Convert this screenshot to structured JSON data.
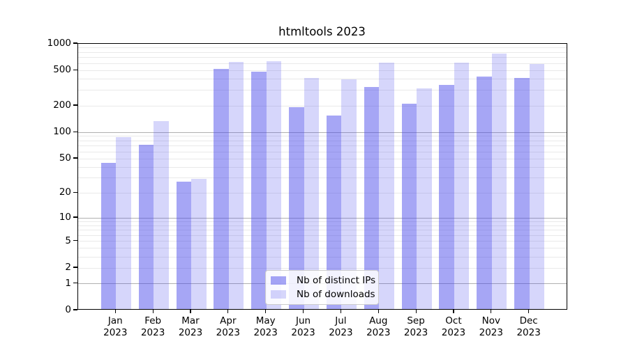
{
  "window": {
    "background": "#ffffff",
    "text_color": "#000000"
  },
  "chart_data": {
    "type": "bar",
    "title": "htmltools 2023",
    "categories": [
      "Jan",
      "Feb",
      "Mar",
      "Apr",
      "May",
      "Jun",
      "Jul",
      "Aug",
      "Sep",
      "Oct",
      "Nov",
      "Dec"
    ],
    "category_year": "2023",
    "series": [
      {
        "name": "Nb of distinct IPs",
        "color": "#4646EB7A",
        "values": [
          43,
          70,
          26,
          500,
          465,
          185,
          150,
          315,
          205,
          330,
          415,
          400
        ]
      },
      {
        "name": "Nb of downloads",
        "color": "#4646EB38",
        "values": [
          85,
          130,
          28,
          600,
          610,
          400,
          385,
          590,
          305,
          590,
          745,
          570
        ]
      }
    ],
    "xlabel": "",
    "ylabel": "",
    "yscale": "log1p",
    "ylim": [
      0,
      1000
    ],
    "yticks": [
      0,
      1,
      2,
      5,
      10,
      20,
      50,
      100,
      200,
      500,
      1000
    ],
    "grid": {
      "show": true,
      "major_values": [
        1,
        10,
        100
      ],
      "minors_per_decade": [
        2,
        3,
        4,
        5,
        6,
        7,
        8,
        9
      ],
      "major_color": "#b0b0b0",
      "minor_color": "#e9e9e9"
    },
    "legend": {
      "position": "lower center",
      "entries": [
        "Nb of distinct IPs",
        "Nb of downloads"
      ],
      "border_color": "#cccccc",
      "background": "#ffffffd9"
    }
  }
}
